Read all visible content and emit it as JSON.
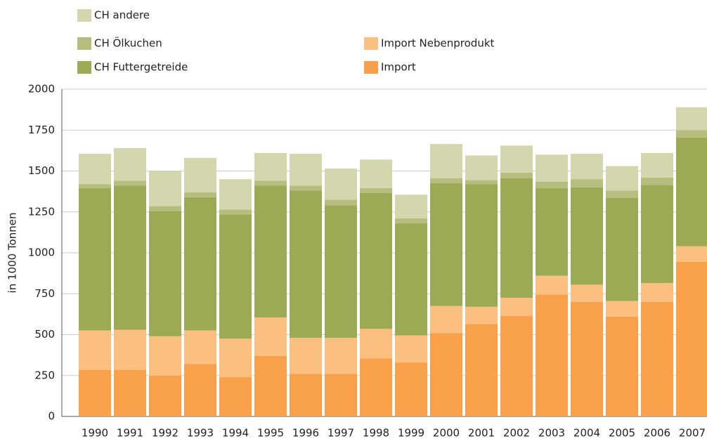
{
  "chart_data": {
    "type": "stacked_bar",
    "y_label": "in 1000 Tonnen",
    "categories": [
      "1990",
      "1991",
      "1992",
      "1993",
      "1994",
      "1995",
      "1996",
      "1997",
      "1998",
      "1999",
      "2000",
      "2001",
      "2002",
      "2003",
      "2004",
      "2005",
      "2006",
      "2007"
    ],
    "series": [
      {
        "name": "Import",
        "color": "#f9a04a",
        "values": [
          285,
          285,
          250,
          320,
          240,
          370,
          260,
          260,
          355,
          330,
          510,
          565,
          615,
          745,
          700,
          610,
          700,
          945
        ]
      },
      {
        "name": "Import Nebenprodukt",
        "color": "#fbbf80",
        "values": [
          240,
          245,
          240,
          205,
          235,
          235,
          220,
          220,
          180,
          165,
          165,
          105,
          110,
          115,
          105,
          95,
          115,
          95
        ]
      },
      {
        "name": "CH Futtergetreide",
        "color": "#9caa55",
        "values": [
          870,
          880,
          765,
          815,
          760,
          805,
          900,
          810,
          830,
          685,
          750,
          750,
          730,
          535,
          595,
          630,
          600,
          665
        ]
      },
      {
        "name": "CH Ölkuchen",
        "color": "#b6bd7e",
        "values": [
          25,
          30,
          30,
          30,
          30,
          30,
          30,
          35,
          30,
          30,
          30,
          25,
          35,
          40,
          50,
          45,
          45,
          45
        ]
      },
      {
        "name": "CH andere",
        "color": "#d4d6ad",
        "values": [
          185,
          200,
          215,
          210,
          185,
          170,
          195,
          190,
          175,
          145,
          210,
          150,
          165,
          165,
          155,
          150,
          150,
          140
        ]
      }
    ],
    "ylim": [
      0,
      2000
    ],
    "yticks": [
      0,
      250,
      500,
      750,
      1000,
      1250,
      1500,
      1750,
      2000
    ],
    "grid": true
  }
}
